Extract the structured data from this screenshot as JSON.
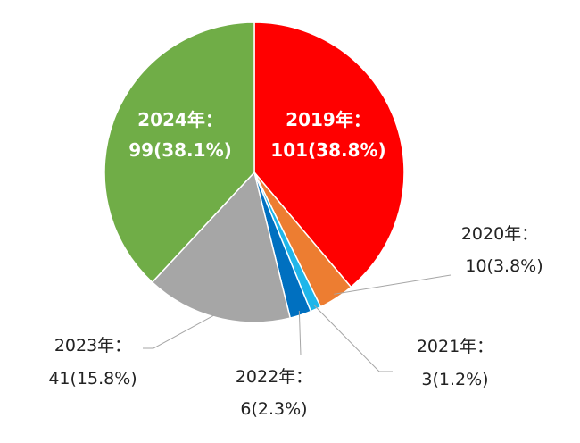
{
  "chart_data": {
    "type": "pie",
    "title": "",
    "slices": [
      {
        "label": "2019年：",
        "value_text": "101(38.8%)",
        "value": 101,
        "percent": 38.8,
        "color": "#ff0000"
      },
      {
        "label": "2020年：",
        "value_text": "10(3.8%)",
        "value": 10,
        "percent": 3.8,
        "color": "#ed7d31"
      },
      {
        "label": "2021年：",
        "value_text": "3(1.2%)",
        "value": 3,
        "percent": 1.2,
        "color": "#1fb6ea"
      },
      {
        "label": "2022年：",
        "value_text": "6(2.3%)",
        "value": 6,
        "percent": 2.3,
        "color": "#0070c0"
      },
      {
        "label": "2023年：",
        "value_text": "41(15.8%)",
        "value": 41,
        "percent": 15.8,
        "color": "#a6a6a6"
      },
      {
        "label": "2024年：",
        "value_text": "99(38.1%)",
        "value": 99,
        "percent": 38.1,
        "color": "#70ad47"
      }
    ]
  }
}
